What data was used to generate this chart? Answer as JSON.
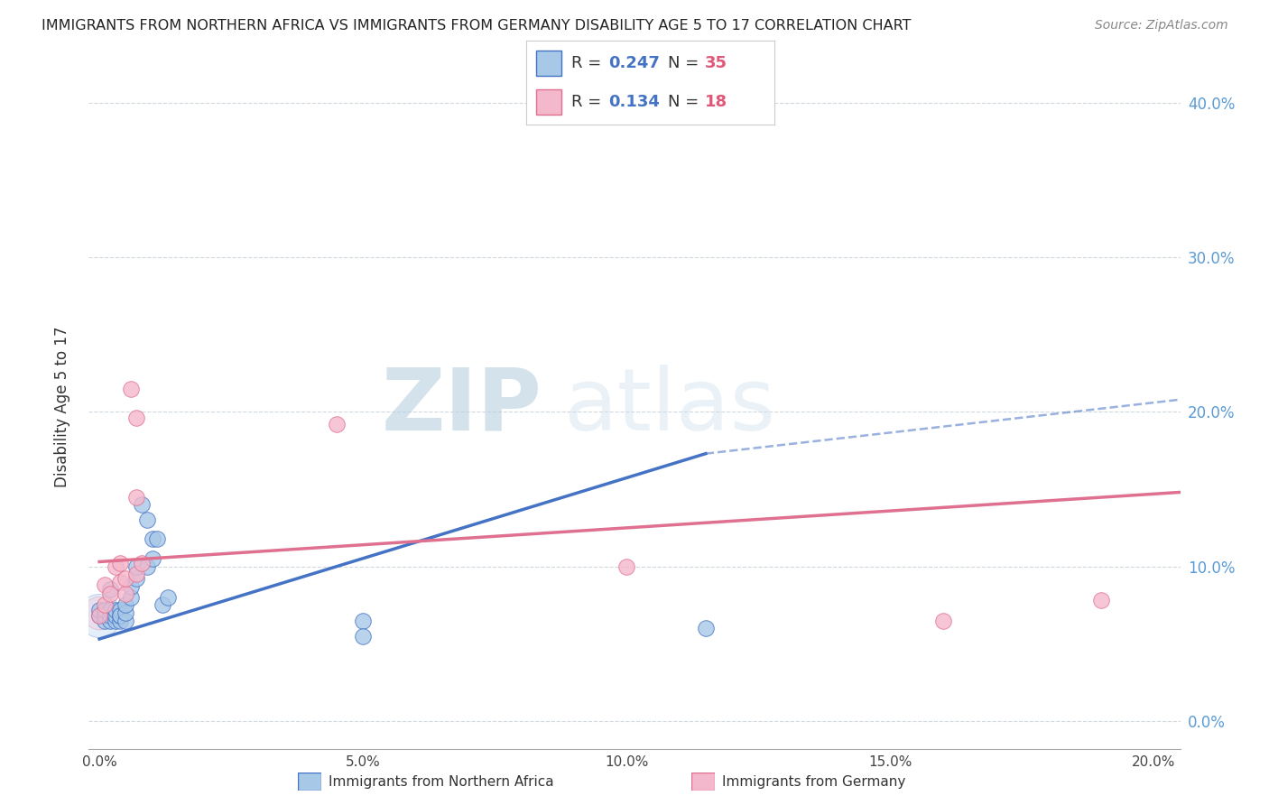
{
  "title": "IMMIGRANTS FROM NORTHERN AFRICA VS IMMIGRANTS FROM GERMANY DISABILITY AGE 5 TO 17 CORRELATION CHART",
  "source": "Source: ZipAtlas.com",
  "ylabel": "Disability Age 5 to 17",
  "xlabel_blue": "Immigrants from Northern Africa",
  "xlabel_pink": "Immigrants from Germany",
  "blue_R": "0.247",
  "blue_N": "35",
  "pink_R": "0.134",
  "pink_N": "18",
  "xmin": -0.002,
  "xmax": 0.205,
  "ymin": -0.018,
  "ymax": 0.425,
  "blue_scatter_x": [
    0.0,
    0.0,
    0.001,
    0.001,
    0.001,
    0.001,
    0.002,
    0.002,
    0.002,
    0.002,
    0.003,
    0.003,
    0.003,
    0.004,
    0.004,
    0.004,
    0.004,
    0.005,
    0.005,
    0.005,
    0.006,
    0.006,
    0.007,
    0.007,
    0.008,
    0.009,
    0.009,
    0.01,
    0.01,
    0.011,
    0.012,
    0.013,
    0.05,
    0.05,
    0.115
  ],
  "blue_scatter_y": [
    0.068,
    0.072,
    0.065,
    0.068,
    0.072,
    0.072,
    0.065,
    0.068,
    0.072,
    0.085,
    0.065,
    0.068,
    0.072,
    0.065,
    0.068,
    0.072,
    0.068,
    0.065,
    0.07,
    0.075,
    0.08,
    0.087,
    0.092,
    0.1,
    0.14,
    0.1,
    0.13,
    0.105,
    0.118,
    0.118,
    0.075,
    0.08,
    0.065,
    0.055,
    0.06
  ],
  "pink_scatter_x": [
    0.0,
    0.001,
    0.001,
    0.002,
    0.003,
    0.004,
    0.004,
    0.005,
    0.005,
    0.006,
    0.007,
    0.007,
    0.007,
    0.008,
    0.045,
    0.1,
    0.16,
    0.19
  ],
  "pink_scatter_y": [
    0.068,
    0.075,
    0.088,
    0.082,
    0.1,
    0.09,
    0.102,
    0.082,
    0.092,
    0.215,
    0.196,
    0.145,
    0.095,
    0.102,
    0.192,
    0.1,
    0.065,
    0.078
  ],
  "blue_line_x_start": 0.0,
  "blue_line_x_solid_end": 0.115,
  "blue_line_x_dashed_end": 0.205,
  "blue_line_y_start": 0.053,
  "blue_line_y_solid_end": 0.173,
  "blue_line_y_dashed_end": 0.208,
  "pink_line_x_start": 0.0,
  "pink_line_x_end": 0.205,
  "pink_line_y_start": 0.103,
  "pink_line_y_end": 0.148,
  "blue_dot_color": "#a8c8e8",
  "blue_line_color": "#4472c4",
  "pink_dot_color": "#f4b8cc",
  "pink_line_color": "#e07090",
  "right_tick_color": "#5b9bd5",
  "grid_color": "#d0d8e0",
  "title_color": "#222222",
  "source_color": "#888888",
  "x_ticks": [
    0.0,
    0.05,
    0.1,
    0.15,
    0.2
  ],
  "x_tick_labels": [
    "0.0%",
    "5.0%",
    "10.0%",
    "15.0%",
    "20.0%"
  ],
  "y_ticks": [
    0.0,
    0.1,
    0.2,
    0.3,
    0.4
  ],
  "y_tick_labels": [
    "0.0%",
    "10.0%",
    "20.0%",
    "30.0%",
    "40.0%"
  ]
}
